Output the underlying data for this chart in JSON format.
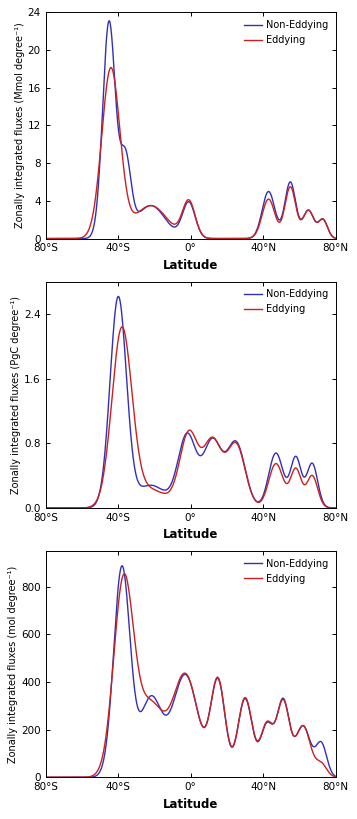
{
  "panels": [
    {
      "ylabel": "Zonally integrated fluxes (Mmol degree⁻¹)",
      "xlabel": "Latitude",
      "yticks": [
        0,
        4,
        8,
        12,
        16,
        20,
        24
      ],
      "ylim": [
        0,
        24
      ],
      "xticks": [
        -80,
        -40,
        0,
        40,
        80
      ],
      "xticklabels": [
        "80°S",
        "40°S",
        "0°",
        "40°N",
        "80°N"
      ],
      "xlim": [
        -80,
        80
      ]
    },
    {
      "ylabel": "Zonally integrated fluxes (PgC degree⁻¹)",
      "xlabel": "Latitude",
      "yticks": [
        0.0,
        0.8,
        1.6,
        2.4
      ],
      "ylim": [
        0,
        2.8
      ],
      "xticks": [
        -80,
        -40,
        0,
        40,
        80
      ],
      "xticklabels": [
        "80°S",
        "40°S",
        "0°",
        "40°N",
        "80°N"
      ],
      "xlim": [
        -80,
        80
      ]
    },
    {
      "ylabel": "Zonally integrated fluxes (mol degree⁻¹)",
      "xlabel": "Latitude",
      "yticks": [
        0,
        200,
        400,
        600,
        800
      ],
      "ylim": [
        0,
        950
      ],
      "xticks": [
        -80,
        -40,
        0,
        40,
        80
      ],
      "xticklabels": [
        "80°S",
        "40°S",
        "0°",
        "40°N",
        "80°N"
      ],
      "xlim": [
        -80,
        80
      ]
    }
  ],
  "legend_labels": [
    "Non-Eddying",
    "Eddying"
  ],
  "blue_color": "#3030bb",
  "red_color": "#cc2020",
  "line_width": 1.0,
  "background_color": "#ffffff"
}
